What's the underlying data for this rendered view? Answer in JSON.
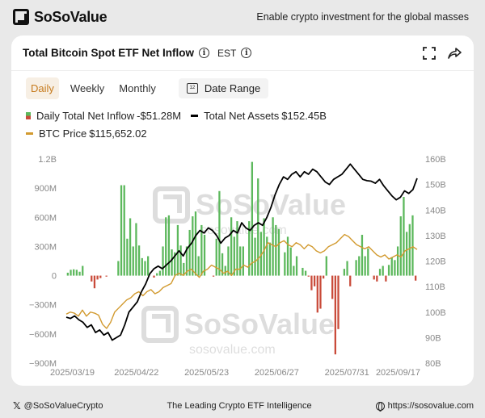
{
  "header": {
    "brand": "SoSoValue",
    "tagline": "Enable crypto investment for the global masses"
  },
  "card": {
    "title": "Total Bitcoin Spot ETF Net Inflow",
    "timezone": "EST",
    "tabs": [
      "Daily",
      "Weekly",
      "Monthly"
    ],
    "active_tab": "Daily",
    "date_range_label": "Date Range"
  },
  "legend": {
    "inflow_label": "Daily Total Net Inflow",
    "inflow_value": "-$51.28M",
    "assets_label": "Total Net Assets",
    "assets_value": "$152.45B",
    "btc_label": "BTC Price",
    "btc_value": "$115,652.02"
  },
  "watermark": {
    "logo_text": "SoSoValue",
    "site": "sosovalue.com"
  },
  "footer": {
    "handle": "@SoSoValueCrypto",
    "center": "The Leading Crypto ETF Intelligence",
    "site": "https://sosovalue.com"
  },
  "colors": {
    "inflow_positive": "#5cb85c",
    "inflow_negative": "#c94b3a",
    "assets": "#000000",
    "btc": "#d29a2f",
    "accent": "#c67a1c"
  },
  "chart_data": {
    "type": "bar",
    "x_ticks": [
      "2025/03/19",
      "2025/04/22",
      "2025/05/23",
      "2025/06/27",
      "2025/07/31",
      "2025/09/17"
    ],
    "left_axis": {
      "ticks": [
        "1.2B",
        "900M",
        "600M",
        "300M",
        "0",
        "−300M",
        "−600M",
        "−900M"
      ],
      "range_usd_m": [
        -900,
        1200
      ]
    },
    "right_axis": {
      "ticks": [
        "160B",
        "150B",
        "140B",
        "130B",
        "120B",
        "110B",
        "100B",
        "90B",
        "80B"
      ],
      "range_usd_b": [
        80,
        160
      ]
    },
    "series": [
      {
        "name": "Daily Total Net Inflow",
        "kind": "bar",
        "unit": "USD M",
        "values": [
          30,
          60,
          65,
          60,
          40,
          100,
          0,
          0,
          -60,
          -130,
          -40,
          -25,
          0,
          -10,
          0,
          0,
          0,
          150,
          930,
          930,
          380,
          590,
          300,
          540,
          310,
          180,
          150,
          200,
          0,
          -20,
          25,
          50,
          300,
          600,
          620,
          270,
          240,
          520,
          310,
          130,
          300,
          470,
          610,
          660,
          200,
          520,
          420,
          0,
          0,
          -10,
          380,
          870,
          230,
          100,
          300,
          600,
          400,
          560,
          300,
          300,
          0,
          560,
          1170,
          390,
          1000,
          450,
          590,
          400,
          340,
          600,
          520,
          480,
          0,
          240,
          400,
          290,
          100,
          200,
          0,
          80,
          50,
          -10,
          -150,
          -110,
          -380,
          -340,
          -30,
          200,
          0,
          -240,
          -810,
          -550,
          0,
          70,
          150,
          -110,
          0,
          160,
          200,
          420,
          200,
          280,
          0,
          -40,
          -60,
          70,
          100,
          -60,
          110,
          190,
          160,
          300,
          610,
          810,
          450,
          530,
          620,
          -51.28
        ]
      },
      {
        "name": "Total Net Assets",
        "kind": "line",
        "unit": "USD B",
        "values": [
          98,
          97.5,
          98.5,
          97,
          96,
          94,
          95,
          92,
          93,
          91,
          92,
          89,
          90,
          91,
          95,
          100,
          102,
          104,
          108,
          111,
          115,
          117,
          118,
          117,
          118.5,
          120,
          122,
          124,
          122,
          125,
          127,
          130,
          132,
          131,
          133,
          132,
          130,
          127,
          129,
          130,
          132,
          131,
          135,
          133,
          132,
          134,
          135,
          134,
          137,
          141,
          146,
          150,
          153,
          152,
          154,
          155,
          153,
          155,
          154,
          156,
          155,
          153,
          151,
          150,
          152,
          153,
          154,
          156,
          158,
          156,
          154,
          152,
          151.5,
          151.3,
          150.5,
          152,
          149.5,
          147.5,
          145.5,
          144,
          145,
          147.5,
          146.5,
          148,
          152.45
        ]
      },
      {
        "name": "BTC Price",
        "kind": "line",
        "unit": "USD K",
        "values": [
          84,
          85,
          84.5,
          83,
          86,
          83,
          85,
          84.5,
          83.5,
          79,
          77,
          80,
          85,
          87,
          89,
          91,
          92,
          94,
          95,
          93,
          95,
          96,
          94,
          95,
          97,
          98,
          99,
          103,
          104,
          103,
          105,
          106,
          104,
          102,
          105,
          106,
          108,
          107,
          106,
          104,
          105,
          103,
          106,
          106,
          108,
          107,
          109,
          110,
          112,
          115,
          119,
          118,
          117,
          119,
          120,
          118,
          117,
          119,
          118,
          116,
          118,
          117,
          115,
          114,
          115,
          117,
          118,
          119,
          121,
          123,
          122,
          120,
          118,
          117,
          116,
          117,
          115,
          113,
          112,
          113,
          111,
          112,
          113,
          112,
          115,
          116,
          117,
          115.65
        ]
      }
    ],
    "grid": false,
    "legend": "top-left"
  }
}
